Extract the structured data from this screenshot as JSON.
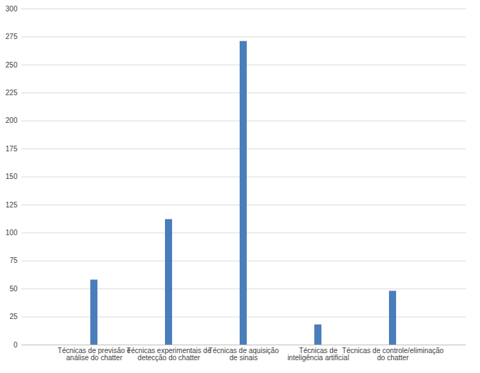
{
  "chart_data": {
    "type": "bar",
    "categories": [
      "Técnicas de previsão e\nanálise do chatter",
      "Técnicas experimentais de\ndetecção do chatter",
      "Técnicas de aquisição\nde sinais",
      "Técnicas de\ninteligência artificial",
      "Técnicas de controle/eliminação\ndo chatter"
    ],
    "values": [
      58,
      112,
      271,
      18,
      48
    ],
    "color": "#4a7ebb",
    "ylim": [
      0,
      300
    ],
    "yticks": [
      0,
      25,
      50,
      75,
      100,
      125,
      150,
      175,
      200,
      225,
      250,
      275,
      300
    ],
    "grid": true
  }
}
